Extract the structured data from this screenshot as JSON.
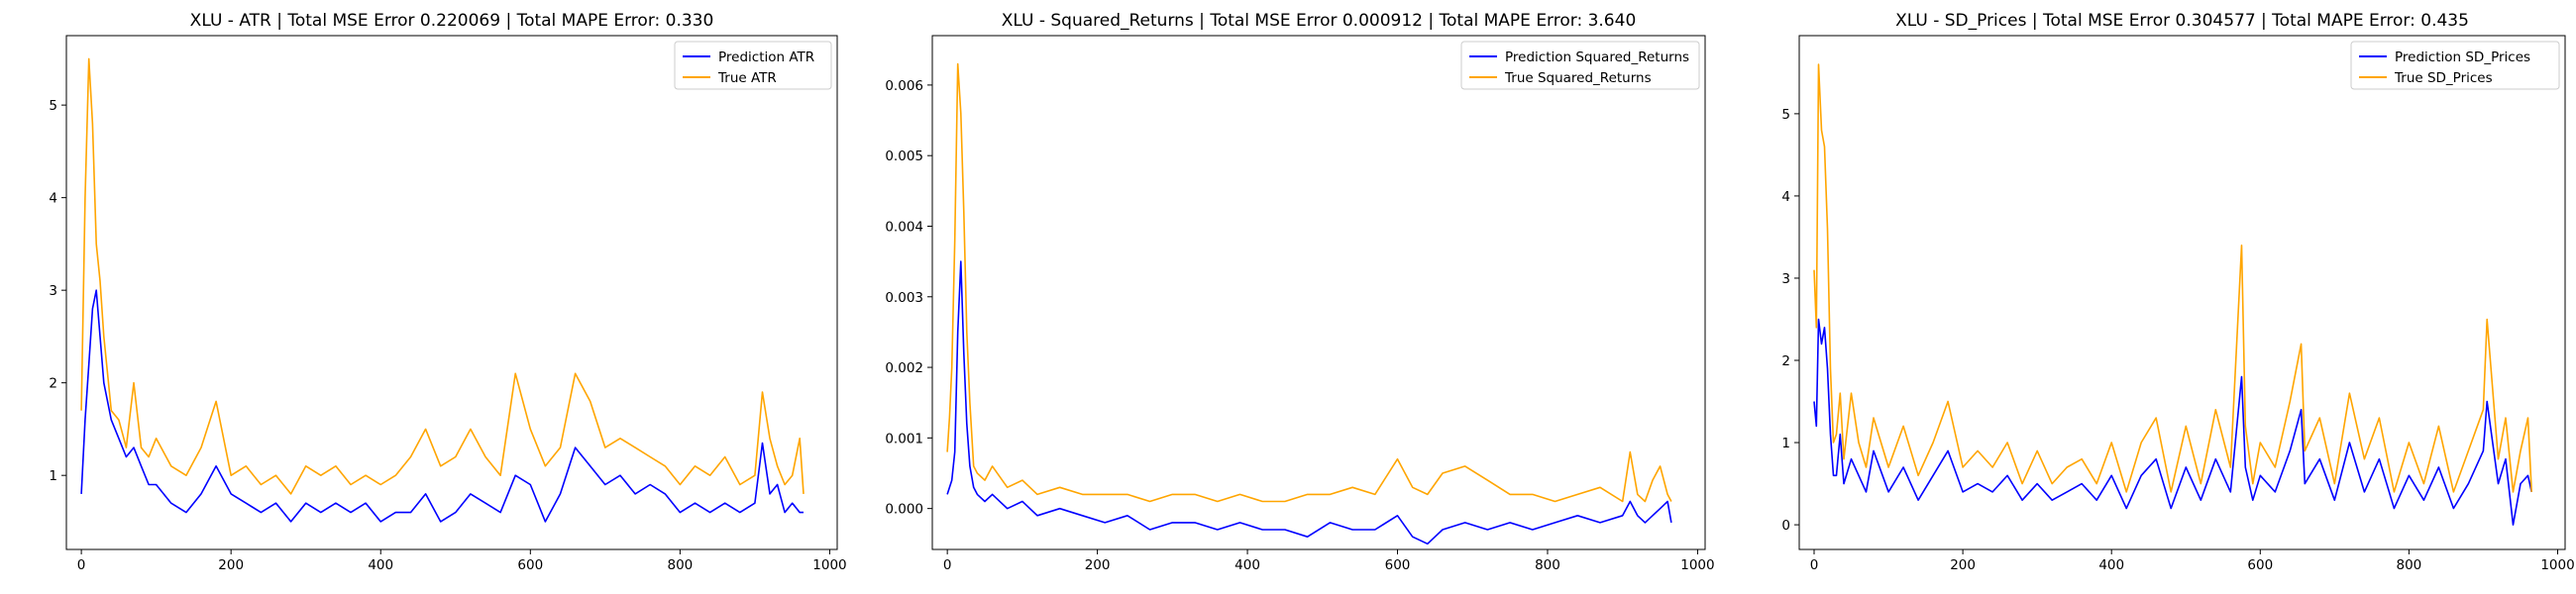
{
  "chart_data": [
    {
      "type": "line",
      "title": "XLU - ATR | Total MSE Error 0.220069 | Total MAPE Error: 0.330",
      "xlabel": "",
      "ylabel": "",
      "xlim": [
        -20,
        1010
      ],
      "ylim": [
        0.2,
        5.75
      ],
      "xticks": [
        0,
        200,
        400,
        600,
        800,
        1000
      ],
      "yticks": [
        1,
        2,
        3,
        4,
        5
      ],
      "ytick_labels": [
        "1",
        "2",
        "3",
        "4",
        "5"
      ],
      "legend_position": "top-right",
      "grid": false,
      "series": [
        {
          "name": "Prediction ATR",
          "color": "#0000ff",
          "x": [
            0,
            5,
            10,
            15,
            20,
            25,
            30,
            40,
            50,
            60,
            70,
            80,
            90,
            100,
            120,
            140,
            160,
            180,
            200,
            220,
            240,
            260,
            280,
            300,
            320,
            340,
            360,
            380,
            400,
            420,
            440,
            460,
            480,
            500,
            520,
            540,
            560,
            580,
            600,
            620,
            640,
            660,
            680,
            700,
            720,
            740,
            760,
            780,
            800,
            820,
            840,
            860,
            880,
            900,
            910,
            920,
            930,
            940,
            950,
            960,
            965
          ],
          "y": [
            0.8,
            1.6,
            2.2,
            2.8,
            3.0,
            2.5,
            2.0,
            1.6,
            1.4,
            1.2,
            1.3,
            1.1,
            0.9,
            0.9,
            0.7,
            0.6,
            0.8,
            1.1,
            0.8,
            0.7,
            0.6,
            0.7,
            0.5,
            0.7,
            0.6,
            0.7,
            0.6,
            0.7,
            0.5,
            0.6,
            0.6,
            0.8,
            0.5,
            0.6,
            0.8,
            0.7,
            0.6,
            1.0,
            0.9,
            0.5,
            0.8,
            1.3,
            1.1,
            0.9,
            1.0,
            0.8,
            0.9,
            0.8,
            0.6,
            0.7,
            0.6,
            0.7,
            0.6,
            0.7,
            1.35,
            0.8,
            0.9,
            0.6,
            0.7,
            0.6,
            0.6
          ]
        },
        {
          "name": "True ATR",
          "color": "#ffa500",
          "x": [
            0,
            5,
            10,
            15,
            20,
            25,
            30,
            40,
            50,
            60,
            70,
            80,
            90,
            100,
            120,
            140,
            160,
            180,
            200,
            220,
            240,
            260,
            280,
            300,
            320,
            340,
            360,
            380,
            400,
            420,
            440,
            460,
            480,
            500,
            520,
            540,
            560,
            580,
            600,
            620,
            640,
            660,
            680,
            700,
            720,
            740,
            760,
            780,
            800,
            820,
            840,
            860,
            880,
            900,
            910,
            920,
            930,
            940,
            950,
            960,
            965
          ],
          "y": [
            1.7,
            4.0,
            5.5,
            4.8,
            3.5,
            3.1,
            2.5,
            1.7,
            1.6,
            1.3,
            2.0,
            1.3,
            1.2,
            1.4,
            1.1,
            1.0,
            1.3,
            1.8,
            1.0,
            1.1,
            0.9,
            1.0,
            0.8,
            1.1,
            1.0,
            1.1,
            0.9,
            1.0,
            0.9,
            1.0,
            1.2,
            1.5,
            1.1,
            1.2,
            1.5,
            1.2,
            1.0,
            2.1,
            1.5,
            1.1,
            1.3,
            2.1,
            1.8,
            1.3,
            1.4,
            1.3,
            1.2,
            1.1,
            0.9,
            1.1,
            1.0,
            1.2,
            0.9,
            1.0,
            1.9,
            1.4,
            1.1,
            0.9,
            1.0,
            1.4,
            0.8
          ]
        }
      ]
    },
    {
      "type": "line",
      "title": "XLU - Squared_Returns | Total MSE Error 0.000912 | Total MAPE Error: 3.640",
      "xlabel": "",
      "ylabel": "",
      "xlim": [
        -20,
        1010
      ],
      "ylim": [
        -0.00058,
        0.0067
      ],
      "xticks": [
        0,
        200,
        400,
        600,
        800,
        1000
      ],
      "yticks": [
        0.0,
        0.001,
        0.002,
        0.003,
        0.004,
        0.005,
        0.006
      ],
      "ytick_labels": [
        "0.000",
        "0.001",
        "0.002",
        "0.003",
        "0.004",
        "0.005",
        "0.006"
      ],
      "legend_position": "top-right",
      "grid": false,
      "series": [
        {
          "name": "Prediction Squared_Returns",
          "color": "#0000ff",
          "x": [
            0,
            3,
            6,
            10,
            14,
            18,
            22,
            26,
            30,
            35,
            40,
            50,
            60,
            80,
            100,
            120,
            150,
            180,
            210,
            240,
            270,
            300,
            330,
            360,
            390,
            420,
            450,
            480,
            510,
            540,
            570,
            600,
            620,
            640,
            660,
            690,
            720,
            750,
            780,
            810,
            840,
            870,
            900,
            910,
            920,
            930,
            940,
            950,
            960,
            965
          ],
          "y": [
            0.0002,
            0.0003,
            0.0004,
            0.0008,
            0.0025,
            0.0035,
            0.0022,
            0.0012,
            0.0006,
            0.0003,
            0.0002,
            0.0001,
            0.0002,
            0.0,
            0.0001,
            -0.0001,
            0.0,
            -0.0001,
            -0.0002,
            -0.0001,
            -0.0003,
            -0.0002,
            -0.0002,
            -0.0003,
            -0.0002,
            -0.0003,
            -0.0003,
            -0.0004,
            -0.0002,
            -0.0003,
            -0.0003,
            -0.0001,
            -0.0004,
            -0.0005,
            -0.0003,
            -0.0002,
            -0.0003,
            -0.0002,
            -0.0003,
            -0.0002,
            -0.0001,
            -0.0002,
            -0.0001,
            0.0001,
            -0.0001,
            -0.0002,
            -0.0001,
            0.0,
            0.0001,
            -0.0002
          ]
        },
        {
          "name": "True Squared_Returns",
          "color": "#ffa500",
          "x": [
            0,
            3,
            6,
            10,
            14,
            18,
            22,
            26,
            30,
            35,
            40,
            50,
            60,
            80,
            100,
            120,
            150,
            180,
            210,
            240,
            270,
            300,
            330,
            360,
            390,
            420,
            450,
            480,
            510,
            540,
            570,
            600,
            620,
            640,
            660,
            690,
            720,
            750,
            780,
            810,
            840,
            870,
            900,
            910,
            920,
            930,
            940,
            950,
            960,
            965
          ],
          "y": [
            0.0008,
            0.0013,
            0.002,
            0.0038,
            0.0063,
            0.0056,
            0.0042,
            0.0025,
            0.0015,
            0.0006,
            0.0005,
            0.0004,
            0.0006,
            0.0003,
            0.0004,
            0.0002,
            0.0003,
            0.0002,
            0.0002,
            0.0002,
            0.0001,
            0.0002,
            0.0002,
            0.0001,
            0.0002,
            0.0001,
            0.0001,
            0.0002,
            0.0002,
            0.0003,
            0.0002,
            0.0007,
            0.0003,
            0.0002,
            0.0005,
            0.0006,
            0.0004,
            0.0002,
            0.0002,
            0.0001,
            0.0002,
            0.0003,
            0.0001,
            0.0008,
            0.0002,
            0.0001,
            0.0004,
            0.0006,
            0.0002,
            0.0001
          ]
        }
      ]
    },
    {
      "type": "line",
      "title": "XLU - SD_Prices | Total MSE Error 0.304577 | Total MAPE Error: 0.435",
      "xlabel": "",
      "ylabel": "",
      "xlim": [
        -20,
        1010
      ],
      "ylim": [
        -0.3,
        5.95
      ],
      "xticks": [
        0,
        200,
        400,
        600,
        800,
        1000
      ],
      "yticks": [
        0,
        1,
        2,
        3,
        4,
        5
      ],
      "ytick_labels": [
        "0",
        "1",
        "2",
        "3",
        "4",
        "5"
      ],
      "legend_position": "top-right",
      "grid": false,
      "series": [
        {
          "name": "Prediction SD_Prices",
          "color": "#0000ff",
          "x": [
            0,
            3,
            6,
            10,
            14,
            18,
            22,
            26,
            30,
            35,
            40,
            50,
            60,
            70,
            80,
            100,
            120,
            140,
            160,
            180,
            200,
            220,
            240,
            260,
            280,
            300,
            320,
            340,
            360,
            380,
            400,
            420,
            440,
            460,
            480,
            500,
            520,
            540,
            560,
            575,
            580,
            590,
            600,
            620,
            640,
            655,
            660,
            680,
            700,
            720,
            740,
            760,
            780,
            800,
            820,
            840,
            860,
            880,
            900,
            905,
            920,
            930,
            940,
            950,
            960,
            965
          ],
          "y": [
            1.5,
            1.2,
            2.5,
            2.2,
            2.4,
            1.9,
            1.1,
            0.6,
            0.6,
            1.1,
            0.5,
            0.8,
            0.6,
            0.4,
            0.9,
            0.4,
            0.7,
            0.3,
            0.6,
            0.9,
            0.4,
            0.5,
            0.4,
            0.6,
            0.3,
            0.5,
            0.3,
            0.4,
            0.5,
            0.3,
            0.6,
            0.2,
            0.6,
            0.8,
            0.2,
            0.7,
            0.3,
            0.8,
            0.4,
            1.8,
            0.7,
            0.3,
            0.6,
            0.4,
            0.9,
            1.4,
            0.5,
            0.8,
            0.3,
            1.0,
            0.4,
            0.8,
            0.2,
            0.6,
            0.3,
            0.7,
            0.2,
            0.5,
            0.9,
            1.5,
            0.5,
            0.8,
            0.0,
            0.5,
            0.6,
            0.4
          ]
        },
        {
          "name": "True SD_Prices",
          "color": "#ffa500",
          "x": [
            0,
            3,
            6,
            10,
            14,
            18,
            22,
            26,
            30,
            35,
            40,
            50,
            60,
            70,
            80,
            100,
            120,
            140,
            160,
            180,
            200,
            220,
            240,
            260,
            280,
            300,
            320,
            340,
            360,
            380,
            400,
            420,
            440,
            460,
            480,
            500,
            520,
            540,
            560,
            575,
            580,
            590,
            600,
            620,
            640,
            655,
            660,
            680,
            700,
            720,
            740,
            760,
            780,
            800,
            820,
            840,
            860,
            880,
            900,
            905,
            920,
            930,
            940,
            950,
            960,
            965
          ],
          "y": [
            3.1,
            2.4,
            5.6,
            4.8,
            4.6,
            3.6,
            1.9,
            1.0,
            1.1,
            1.6,
            0.8,
            1.6,
            1.0,
            0.7,
            1.3,
            0.7,
            1.2,
            0.6,
            1.0,
            1.5,
            0.7,
            0.9,
            0.7,
            1.0,
            0.5,
            0.9,
            0.5,
            0.7,
            0.8,
            0.5,
            1.0,
            0.4,
            1.0,
            1.3,
            0.4,
            1.2,
            0.5,
            1.4,
            0.7,
            3.4,
            1.2,
            0.5,
            1.0,
            0.7,
            1.5,
            2.2,
            0.9,
            1.3,
            0.5,
            1.6,
            0.8,
            1.3,
            0.4,
            1.0,
            0.5,
            1.2,
            0.4,
            0.9,
            1.4,
            2.5,
            0.8,
            1.3,
            0.4,
            0.9,
            1.3,
            0.4
          ]
        }
      ]
    }
  ]
}
